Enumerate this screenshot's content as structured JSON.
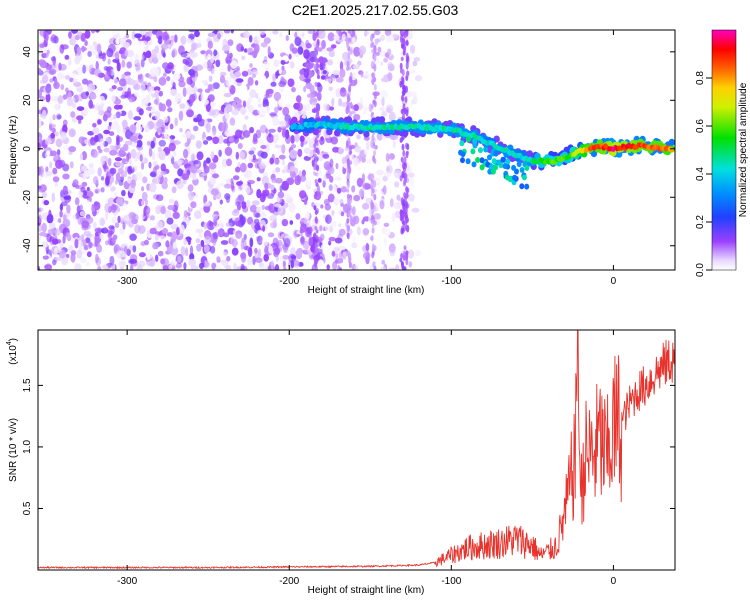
{
  "title": "C2E1.2025.217.02.55.G03",
  "chart_data": [
    {
      "type": "heatmap",
      "xlabel": "Height of straight line (km)",
      "ylabel": "Frequency (Hz)",
      "xlim": [
        -355,
        38
      ],
      "ylim": [
        -50,
        49
      ],
      "xticks": [
        -300,
        -200,
        -100,
        0
      ],
      "yticks": [
        -40,
        -20,
        0,
        20,
        40
      ],
      "colorbar": {
        "label": "Normalized spectral amplitude",
        "range": [
          0.0,
          1.0
        ],
        "ticks": [
          "0.0",
          "0.2",
          "0.4",
          "0.6",
          "0.8"
        ],
        "tick_values": [
          0.0,
          0.2,
          0.4,
          0.6,
          0.8
        ],
        "colormap": "rainbow (white-violet-blue-cyan-green-yellow-orange-red-magenta)"
      },
      "noise_region": {
        "x_range": [
          -355,
          -120
        ],
        "y_range": [
          -50,
          49
        ],
        "amplitude": [
          0.0,
          0.15
        ]
      },
      "striations": [
        {
          "x": -183,
          "amplitude": 0.08
        },
        {
          "x": -163,
          "amplitude": 0.06
        },
        {
          "x": -148,
          "amplitude": 0.05
        },
        {
          "x": -130,
          "amplitude": 0.09
        },
        {
          "x": -128,
          "amplitude": 0.09
        }
      ],
      "ridge": [
        {
          "x": -198,
          "y": 9,
          "amplitude": 0.35
        },
        {
          "x": -180,
          "y": 10,
          "amplitude": 0.4
        },
        {
          "x": -160,
          "y": 9,
          "amplitude": 0.45
        },
        {
          "x": -140,
          "y": 9,
          "amplitude": 0.45
        },
        {
          "x": -120,
          "y": 9,
          "amplitude": 0.45
        },
        {
          "x": -100,
          "y": 8,
          "amplitude": 0.45
        },
        {
          "x": -85,
          "y": 5,
          "amplitude": 0.45
        },
        {
          "x": -75,
          "y": 2,
          "amplitude": 0.4
        },
        {
          "x": -65,
          "y": -1,
          "amplitude": 0.45
        },
        {
          "x": -55,
          "y": -4,
          "amplitude": 0.4
        },
        {
          "x": -45,
          "y": -5,
          "amplitude": 0.55
        },
        {
          "x": -35,
          "y": -5,
          "amplitude": 0.6
        },
        {
          "x": -28,
          "y": -3,
          "amplitude": 0.55
        },
        {
          "x": -22,
          "y": -1,
          "amplitude": 0.7
        },
        {
          "x": -15,
          "y": 0,
          "amplitude": 0.85
        },
        {
          "x": -8,
          "y": 1,
          "amplitude": 0.85
        },
        {
          "x": 0,
          "y": 0,
          "amplitude": 0.95
        },
        {
          "x": 10,
          "y": 1,
          "amplitude": 0.9
        },
        {
          "x": 20,
          "y": 1,
          "amplitude": 0.85
        },
        {
          "x": 30,
          "y": 0,
          "amplitude": 0.85
        },
        {
          "x": 37,
          "y": 0,
          "amplitude": 0.8
        }
      ]
    },
    {
      "type": "line",
      "xlabel": "Height of straight line (km)",
      "ylabel": "SNR (10 * v/v)",
      "yscale_label": "(x10",
      "yscale_exponent": "4",
      "xlim": [
        -355,
        38
      ],
      "ylim": [
        0,
        1.95
      ],
      "xticks": [
        -300,
        -200,
        -100,
        0
      ],
      "yticks": [
        0.5,
        1.0,
        1.5
      ],
      "ytick_labels": [
        "0.5",
        "1.0",
        "1.5"
      ],
      "color": "#e8322c",
      "series": [
        {
          "values": [
            [
              -355,
              0.02
            ],
            [
              -300,
              0.02
            ],
            [
              -250,
              0.02
            ],
            [
              -200,
              0.025
            ],
            [
              -150,
              0.03
            ],
            [
              -120,
              0.04
            ],
            [
              -110,
              0.06
            ],
            [
              -100,
              0.12
            ],
            [
              -90,
              0.18
            ],
            [
              -80,
              0.2
            ],
            [
              -70,
              0.22
            ],
            [
              -60,
              0.25
            ],
            [
              -50,
              0.2
            ],
            [
              -45,
              0.12
            ],
            [
              -40,
              0.15
            ],
            [
              -35,
              0.2
            ],
            [
              -30,
              0.45
            ],
            [
              -25,
              0.8
            ],
            [
              -22,
              1.2
            ],
            [
              -20,
              0.6
            ],
            [
              -18,
              0.9
            ],
            [
              -12,
              0.95
            ],
            [
              -8,
              1.05
            ],
            [
              -4,
              0.9
            ],
            [
              0,
              1.15
            ],
            [
              5,
              1.2
            ],
            [
              10,
              1.35
            ],
            [
              15,
              1.45
            ],
            [
              20,
              1.5
            ],
            [
              25,
              1.58
            ],
            [
              30,
              1.65
            ],
            [
              35,
              1.7
            ],
            [
              38,
              1.72
            ]
          ]
        }
      ]
    }
  ]
}
